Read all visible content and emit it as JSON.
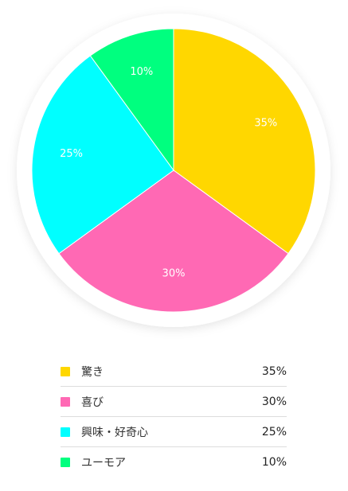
{
  "chart_data": {
    "type": "pie",
    "categories": [
      "驚き",
      "喜び",
      "興味・好奇心",
      "ユーモア"
    ],
    "values": [
      35,
      30,
      25,
      10
    ],
    "slice_labels": [
      "35%",
      "30%",
      "25%",
      "10%"
    ],
    "colors": [
      "#FFD700",
      "#FF69B4",
      "#00FFFF",
      "#00FF7F"
    ],
    "start_angle": "12 o'clock",
    "direction": "clockwise",
    "legend": "bottom"
  },
  "legend": {
    "items": [
      {
        "label": "驚き",
        "value": "35%",
        "color": "#FFD700"
      },
      {
        "label": "喜び",
        "value": "30%",
        "color": "#FF69B4"
      },
      {
        "label": "興味・好奇心",
        "value": "25%",
        "color": "#00FFFF"
      },
      {
        "label": "ユーモア",
        "value": "10%",
        "color": "#00FF7F"
      }
    ]
  }
}
